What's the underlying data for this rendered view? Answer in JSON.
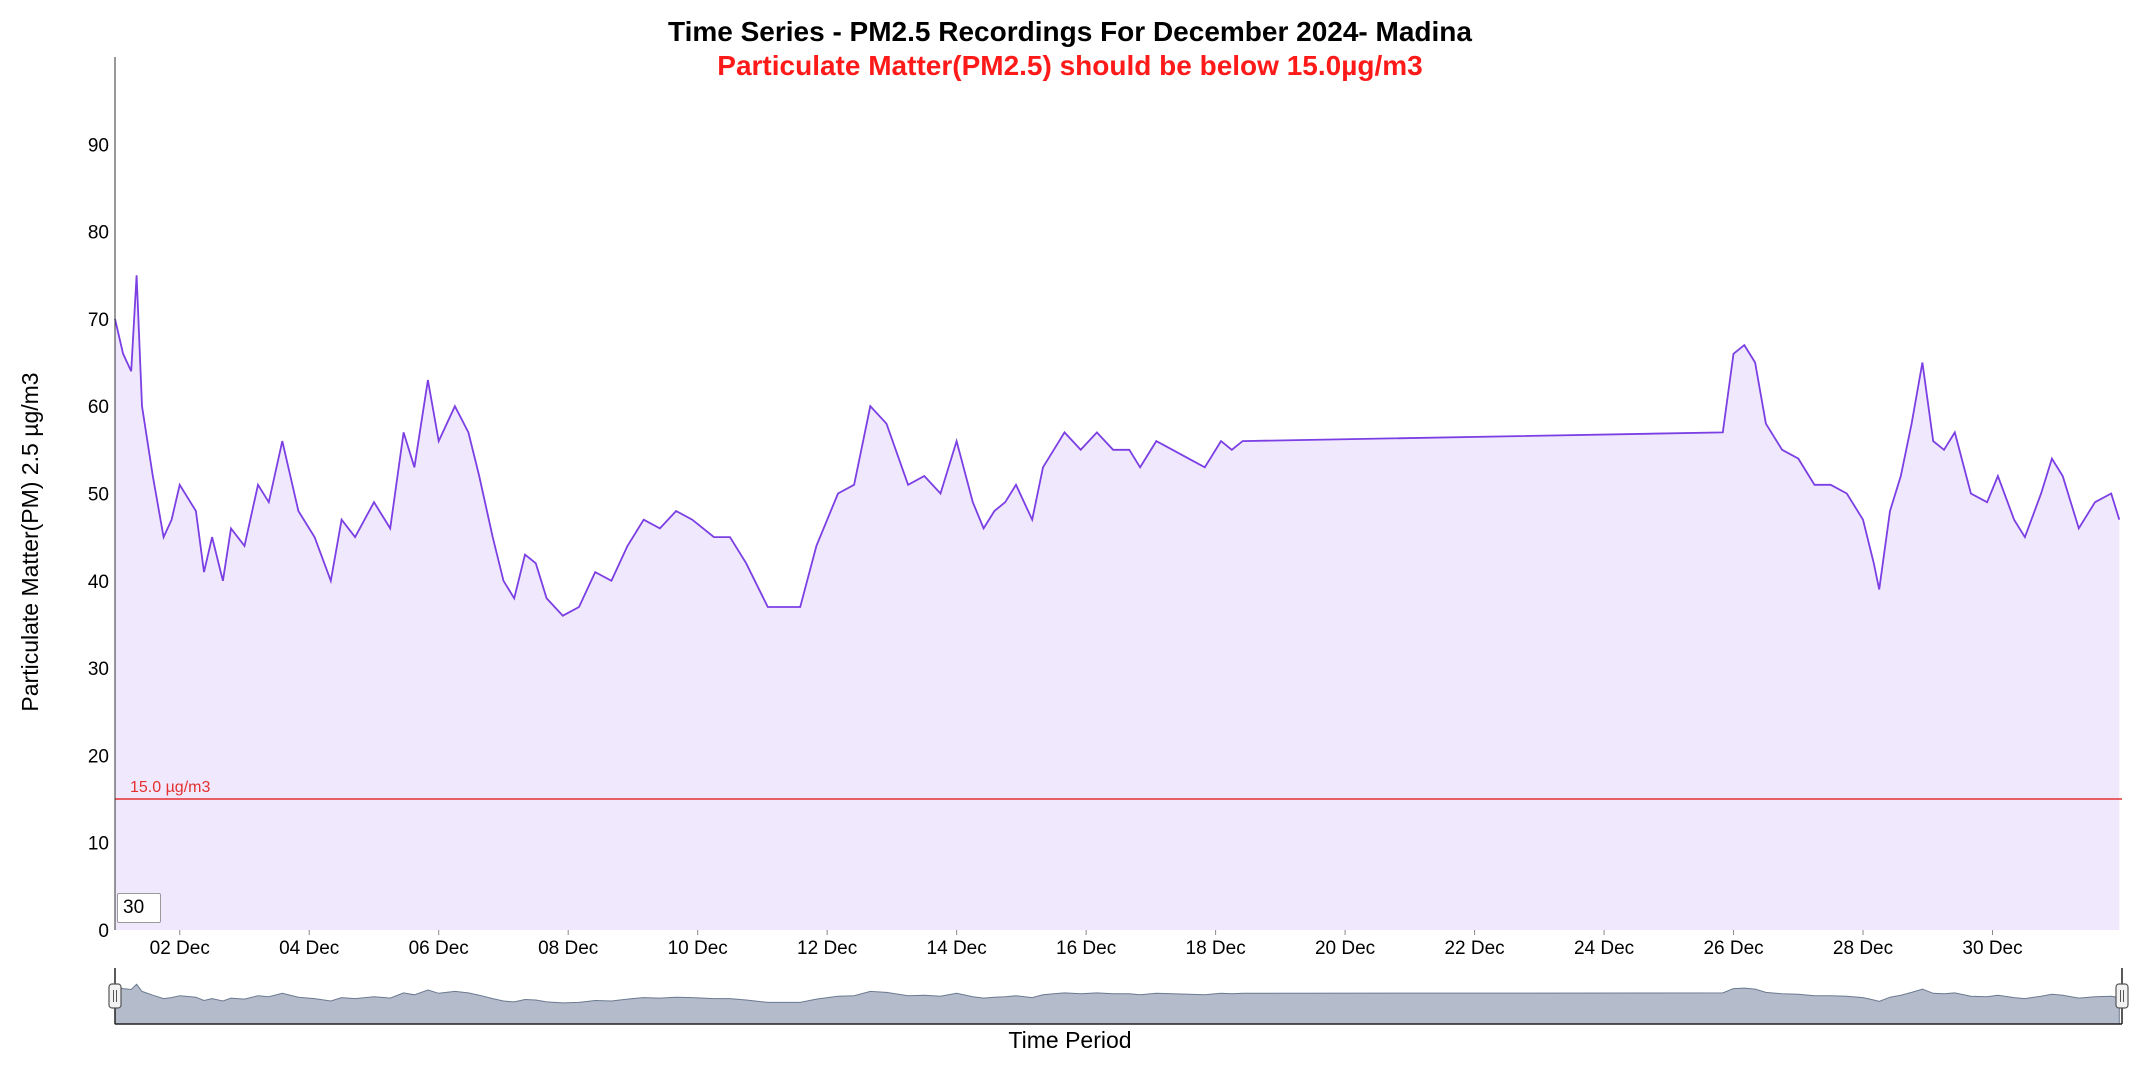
{
  "period_input": {
    "value": "30"
  },
  "chart_data": {
    "type": "area",
    "title": "Time Series - PM2.5 Recordings For December 2024- Madina",
    "subtitle": "Particulate Matter(PM2.5) should be below 15.0µg/m3",
    "xlabel": "Time Period",
    "ylabel": "Particulate Matter(PM) 2.5 µg/m3",
    "ylim": [
      0,
      100
    ],
    "yticks": [
      0,
      10,
      20,
      30,
      40,
      50,
      60,
      70,
      80,
      90
    ],
    "xlim": [
      "2024-12-01 00:00",
      "2025-01-01 00:00"
    ],
    "xticks": [
      {
        "label": "02 Dec",
        "at": "2024-12-02"
      },
      {
        "label": "04 Dec",
        "at": "2024-12-04"
      },
      {
        "label": "06 Dec",
        "at": "2024-12-06"
      },
      {
        "label": "08 Dec",
        "at": "2024-12-08"
      },
      {
        "label": "10 Dec",
        "at": "2024-12-10"
      },
      {
        "label": "12 Dec",
        "at": "2024-12-12"
      },
      {
        "label": "14 Dec",
        "at": "2024-12-14"
      },
      {
        "label": "16 Dec",
        "at": "2024-12-16"
      },
      {
        "label": "18 Dec",
        "at": "2024-12-18"
      },
      {
        "label": "20 Dec",
        "at": "2024-12-20"
      },
      {
        "label": "22 Dec",
        "at": "2024-12-22"
      },
      {
        "label": "24 Dec",
        "at": "2024-12-24"
      },
      {
        "label": "26 Dec",
        "at": "2024-12-26"
      },
      {
        "label": "28 Dec",
        "at": "2024-12-28"
      },
      {
        "label": "30 Dec",
        "at": "2024-12-30"
      }
    ],
    "reference_line": {
      "value": 15,
      "label": "15.0 µg/m3",
      "color": "#e53030"
    },
    "colors": {
      "line": "#7b3fe4",
      "fill": "#f0e8fc",
      "navigator_fill": "#b4bccb",
      "navigator_line": "#6b7a90"
    },
    "series": [
      {
        "x": [
          "2024-12-01 00:00",
          "2024-12-01 03:00",
          "2024-12-01 06:00",
          "2024-12-01 08:00",
          "2024-12-01 10:00",
          "2024-12-01 14:00",
          "2024-12-01 18:00",
          "2024-12-01 21:00",
          "2024-12-02 00:00",
          "2024-12-02 06:00",
          "2024-12-02 09:00",
          "2024-12-02 12:00",
          "2024-12-02 16:00",
          "2024-12-02 19:00",
          "2024-12-03 00:00",
          "2024-12-03 05:00",
          "2024-12-03 09:00",
          "2024-12-03 14:00",
          "2024-12-03 20:00",
          "2024-12-04 02:00",
          "2024-12-04 08:00",
          "2024-12-04 12:00",
          "2024-12-04 17:00",
          "2024-12-05 00:00",
          "2024-12-05 06:00",
          "2024-12-05 11:00",
          "2024-12-05 15:00",
          "2024-12-05 20:00",
          "2024-12-06 00:00",
          "2024-12-06 06:00",
          "2024-12-06 11:00",
          "2024-12-06 15:00",
          "2024-12-06 20:00",
          "2024-12-07 00:00",
          "2024-12-07 04:00",
          "2024-12-07 08:00",
          "2024-12-07 12:00",
          "2024-12-07 16:00",
          "2024-12-07 22:00",
          "2024-12-08 04:00",
          "2024-12-08 10:00",
          "2024-12-08 16:00",
          "2024-12-08 22:00",
          "2024-12-09 04:00",
          "2024-12-09 10:00",
          "2024-12-09 16:00",
          "2024-12-09 22:00",
          "2024-12-10 06:00",
          "2024-12-10 12:00",
          "2024-12-10 18:00",
          "2024-12-11 02:00",
          "2024-12-11 08:00",
          "2024-12-11 14:00",
          "2024-12-11 20:00",
          "2024-12-12 04:00",
          "2024-12-12 10:00",
          "2024-12-12 16:00",
          "2024-12-12 22:00",
          "2024-12-13 06:00",
          "2024-12-13 12:00",
          "2024-12-13 18:00",
          "2024-12-14 00:00",
          "2024-12-14 06:00",
          "2024-12-14 10:00",
          "2024-12-14 14:00",
          "2024-12-14 18:00",
          "2024-12-14 22:00",
          "2024-12-15 04:00",
          "2024-12-15 08:00",
          "2024-12-15 12:00",
          "2024-12-15 16:00",
          "2024-12-15 22:00",
          "2024-12-16 04:00",
          "2024-12-16 10:00",
          "2024-12-16 16:00",
          "2024-12-16 20:00",
          "2024-12-17 02:00",
          "2024-12-17 08:00",
          "2024-12-17 14:00",
          "2024-12-17 20:00",
          "2024-12-18 02:00",
          "2024-12-18 06:00",
          "2024-12-18 10:00",
          "2024-12-25 20:00",
          "2024-12-26 00:00",
          "2024-12-26 04:00",
          "2024-12-26 08:00",
          "2024-12-26 12:00",
          "2024-12-26 18:00",
          "2024-12-27 00:00",
          "2024-12-27 06:00",
          "2024-12-27 12:00",
          "2024-12-27 18:00",
          "2024-12-28 00:00",
          "2024-12-28 04:00",
          "2024-12-28 06:00",
          "2024-12-28 10:00",
          "2024-12-28 14:00",
          "2024-12-28 18:00",
          "2024-12-28 22:00",
          "2024-12-29 02:00",
          "2024-12-29 06:00",
          "2024-12-29 10:00",
          "2024-12-29 16:00",
          "2024-12-29 22:00",
          "2024-12-30 02:00",
          "2024-12-30 08:00",
          "2024-12-30 12:00",
          "2024-12-30 18:00",
          "2024-12-30 22:00",
          "2024-12-31 02:00",
          "2024-12-31 08:00",
          "2024-12-31 14:00",
          "2024-12-31 20:00",
          "2024-12-31 23:00"
        ],
        "y": [
          70,
          66,
          64,
          75,
          60,
          52,
          45,
          47,
          51,
          48,
          41,
          45,
          40,
          46,
          44,
          51,
          49,
          56,
          48,
          45,
          40,
          47,
          45,
          49,
          46,
          57,
          53,
          63,
          56,
          60,
          57,
          52,
          45,
          40,
          38,
          43,
          42,
          38,
          36,
          37,
          41,
          40,
          44,
          47,
          46,
          48,
          47,
          45,
          45,
          42,
          37,
          37,
          37,
          44,
          50,
          51,
          60,
          58,
          51,
          52,
          50,
          56,
          49,
          46,
          48,
          49,
          51,
          47,
          53,
          55,
          57,
          55,
          57,
          55,
          55,
          53,
          56,
          55,
          54,
          53,
          56,
          55,
          56,
          57,
          66,
          67,
          65,
          58,
          55,
          54,
          51,
          51,
          50,
          47,
          42,
          39,
          48,
          52,
          58,
          65,
          56,
          55,
          57,
          50,
          49,
          52,
          47,
          45,
          50,
          54,
          52,
          46,
          49,
          50,
          47
        ]
      }
    ]
  }
}
